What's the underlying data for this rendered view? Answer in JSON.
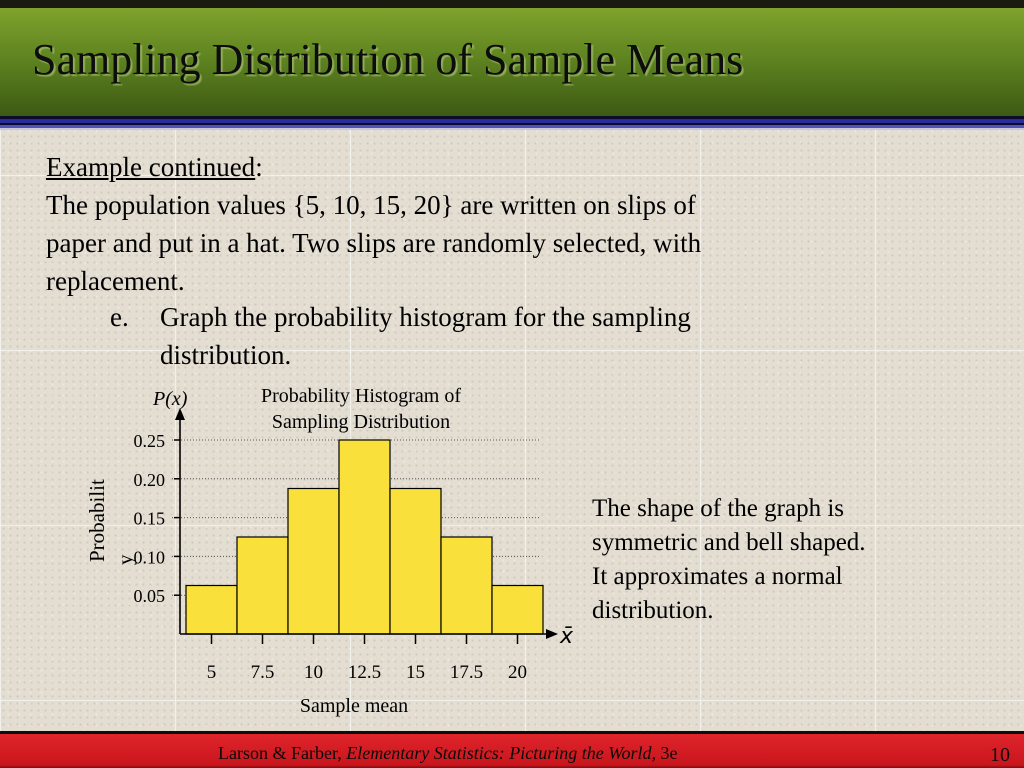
{
  "slide": {
    "title": "Sampling Distribution of Sample Means",
    "example_label": "Example continued",
    "example_colon": ":",
    "body_lines": [
      "The population values {5, 10, 15, 20} are written on slips of",
      "paper and put in a hat.  Two slips are randomly selected, with",
      "replacement."
    ],
    "item_marker": "e.",
    "item_lines": [
      "Graph the probability histogram for the sampling",
      "distribution."
    ],
    "note_lines": [
      "The shape of the graph is",
      "symmetric and bell shaped.",
      "It approximates a normal",
      "distribution."
    ],
    "footer": {
      "authors": "Larson & Farber, ",
      "book": "Elementary Statistics: Picturing the World,",
      "edition": " 3e"
    },
    "page_number": "10"
  },
  "colors": {
    "bar_fill": "#f9e03a",
    "header_green": "#5e8220",
    "footer_red": "#d01c22"
  },
  "chart_data": {
    "type": "bar",
    "title": "Probability Histogram of Sampling Distribution",
    "title_lines": [
      "Probability Histogram of",
      "Sampling Distribution"
    ],
    "y_axis_symbol": "P(x)",
    "x_axis_symbol": "x̄",
    "xlabel": "Sample mean",
    "ylabel": "Probability",
    "ylabel_lines": [
      "Probabilit",
      "y"
    ],
    "categories": [
      "5",
      "7.5",
      "10",
      "12.5",
      "15",
      "17.5",
      "20"
    ],
    "values": [
      0.0625,
      0.125,
      0.1875,
      0.25,
      0.1875,
      0.125,
      0.0625
    ],
    "yticks": [
      0.05,
      0.1,
      0.15,
      0.2,
      0.25
    ],
    "ytick_labels": [
      "0.05",
      "0.10",
      "0.15",
      "0.20",
      "0.25"
    ],
    "ylim": [
      0,
      0.25
    ],
    "grid": true
  }
}
